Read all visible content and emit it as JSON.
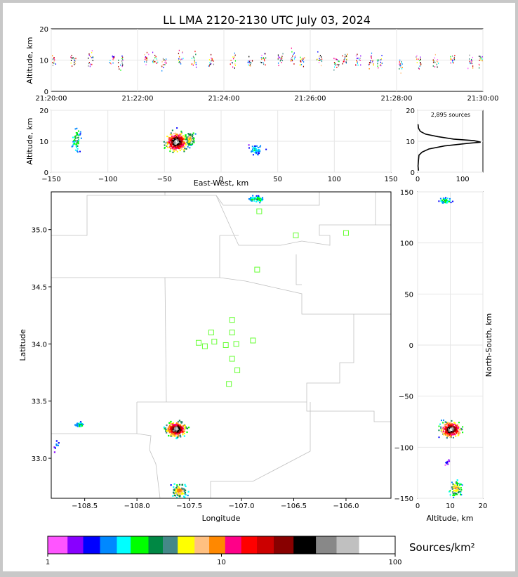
{
  "title": "LL LMA 2120-2130 UTC July 03, 2024",
  "colors": {
    "frame": "#c8c8c8",
    "station": "#66ff33",
    "grid": "#e6e6e6",
    "border": "#c0c0c0"
  },
  "chart_data": [
    {
      "panel": "time-altitude",
      "type": "scatter",
      "ylabel": "Altitude, km",
      "ylim": [
        0,
        20
      ],
      "yticks": [
        "0",
        "10",
        "20"
      ],
      "xticks": [
        "21:20:00",
        "21:22:00",
        "21:24:00",
        "21:26:00",
        "21:28:00",
        "21:30:00"
      ],
      "xlim_minutes": [
        0,
        10
      ],
      "clusters_time": [
        {
          "t": 0.05,
          "alt": 10
        },
        {
          "t": 0.5,
          "alt": 10
        },
        {
          "t": 0.9,
          "alt": 10.5
        },
        {
          "t": 1.4,
          "alt": 10
        },
        {
          "t": 1.6,
          "alt": 9.5
        },
        {
          "t": 2.2,
          "alt": 10.5
        },
        {
          "t": 2.4,
          "alt": 10
        },
        {
          "t": 2.6,
          "alt": 9
        },
        {
          "t": 3.0,
          "alt": 11
        },
        {
          "t": 3.3,
          "alt": 10
        },
        {
          "t": 3.7,
          "alt": 9.5
        },
        {
          "t": 4.2,
          "alt": 10
        },
        {
          "t": 4.6,
          "alt": 9
        },
        {
          "t": 4.9,
          "alt": 10.5
        },
        {
          "t": 5.3,
          "alt": 10.5
        },
        {
          "t": 5.6,
          "alt": 11
        },
        {
          "t": 5.8,
          "alt": 9.5
        },
        {
          "t": 6.2,
          "alt": 10
        },
        {
          "t": 6.6,
          "alt": 9
        },
        {
          "t": 6.8,
          "alt": 10.5
        },
        {
          "t": 7.1,
          "alt": 10
        },
        {
          "t": 7.4,
          "alt": 10
        },
        {
          "t": 7.6,
          "alt": 9.5
        },
        {
          "t": 8.1,
          "alt": 8.5
        },
        {
          "t": 8.5,
          "alt": 9
        },
        {
          "t": 8.9,
          "alt": 9.5
        },
        {
          "t": 9.3,
          "alt": 10.5
        },
        {
          "t": 9.7,
          "alt": 9.5
        },
        {
          "t": 9.95,
          "alt": 10
        }
      ]
    },
    {
      "panel": "ew-altitude",
      "type": "heatmap",
      "xlabel": "East-West, km",
      "ylabel": "Altitude, km",
      "xlim": [
        -150,
        150
      ],
      "ylim": [
        0,
        20
      ],
      "xticks": [
        "−150",
        "−100",
        "−50",
        "0",
        "50",
        "100",
        "150"
      ],
      "yticks": [
        "0",
        "10",
        "20"
      ],
      "clusters": [
        {
          "x": -128,
          "alt": 10.5,
          "sx": 2.5,
          "sy": 2.5,
          "n": 60,
          "peak": 0.35
        },
        {
          "x": -40,
          "alt": 10,
          "sx": 6,
          "sy": 2,
          "n": 320,
          "peak": 0.95
        },
        {
          "x": -28,
          "alt": 11,
          "sx": 3,
          "sy": 1.5,
          "n": 80,
          "peak": 0.5
        },
        {
          "x": 30,
          "alt": 7.5,
          "sx": 5,
          "sy": 1.2,
          "n": 50,
          "peak": 0.2
        }
      ]
    },
    {
      "panel": "altitude-histogram",
      "type": "line",
      "annotation": "2,895 sources",
      "ylim": [
        0,
        20
      ],
      "xlim": [
        0,
        145
      ],
      "yticks": [
        "0",
        "10",
        "20"
      ],
      "xticks": [
        "0",
        "100"
      ],
      "profile": [
        {
          "alt": 0.5,
          "count": 2
        },
        {
          "alt": 2,
          "count": 1
        },
        {
          "alt": 4,
          "count": 2
        },
        {
          "alt": 5.5,
          "count": 3
        },
        {
          "alt": 6.5,
          "count": 10
        },
        {
          "alt": 7.5,
          "count": 25
        },
        {
          "alt": 8.5,
          "count": 60
        },
        {
          "alt": 9.3,
          "count": 110
        },
        {
          "alt": 9.7,
          "count": 140
        },
        {
          "alt": 10.2,
          "count": 125
        },
        {
          "alt": 10.7,
          "count": 80
        },
        {
          "alt": 11.5,
          "count": 45
        },
        {
          "alt": 12.3,
          "count": 18
        },
        {
          "alt": 13.2,
          "count": 6
        },
        {
          "alt": 14.2,
          "count": 2
        },
        {
          "alt": 15.5,
          "count": 1
        }
      ]
    },
    {
      "panel": "plan-view",
      "type": "heatmap",
      "xlabel": "Longitude",
      "ylabel": "Latitude",
      "xlim": [
        -108.82,
        -105.57
      ],
      "ylim": [
        32.65,
        35.33
      ],
      "xticks": [
        "−108.5",
        "−108.0",
        "−107.5",
        "−107.0",
        "−106.5",
        "−106.0"
      ],
      "yticks": [
        "33.0",
        "33.5",
        "34.0",
        "34.5",
        "35.0"
      ],
      "stations": [
        {
          "lon": -106.83,
          "lat": 35.16
        },
        {
          "lon": -106.48,
          "lat": 34.95
        },
        {
          "lon": -106.0,
          "lat": 34.97
        },
        {
          "lon": -106.85,
          "lat": 34.65
        },
        {
          "lon": -107.09,
          "lat": 34.21
        },
        {
          "lon": -107.29,
          "lat": 34.1
        },
        {
          "lon": -107.09,
          "lat": 34.1
        },
        {
          "lon": -107.41,
          "lat": 34.01
        },
        {
          "lon": -107.26,
          "lat": 34.02
        },
        {
          "lon": -107.35,
          "lat": 33.98
        },
        {
          "lon": -107.15,
          "lat": 33.99
        },
        {
          "lon": -107.05,
          "lat": 34.0
        },
        {
          "lon": -106.89,
          "lat": 34.03
        },
        {
          "lon": -107.09,
          "lat": 33.87
        },
        {
          "lon": -107.04,
          "lat": 33.77
        },
        {
          "lon": -107.12,
          "lat": 33.65
        }
      ],
      "clusters": [
        {
          "lon": -106.86,
          "lat": 35.27,
          "sx": 0.05,
          "sy": 0.02,
          "n": 50,
          "peak": 0.3
        },
        {
          "lon": -108.55,
          "lat": 33.3,
          "sx": 0.03,
          "sy": 0.015,
          "n": 30,
          "peak": 0.3
        },
        {
          "lon": -107.63,
          "lat": 33.26,
          "sx": 0.06,
          "sy": 0.04,
          "n": 320,
          "peak": 0.95
        },
        {
          "lon": -107.6,
          "lat": 32.72,
          "sx": 0.05,
          "sy": 0.04,
          "n": 100,
          "peak": 0.55
        },
        {
          "lon": -108.78,
          "lat": 33.12,
          "sx": 0.02,
          "sy": 0.04,
          "n": 8,
          "peak": 0.1
        }
      ]
    },
    {
      "panel": "altitude-ns",
      "type": "heatmap",
      "xlabel": "Altitude, km",
      "ylabel": "North-South, km",
      "xlim": [
        0,
        20
      ],
      "ylim": [
        -150,
        150
      ],
      "xticks": [
        "0",
        "10",
        "20"
      ],
      "yticks": [
        "−150",
        "−100",
        "−50",
        "0",
        "50",
        "100",
        "150"
      ],
      "clusters": [
        {
          "alt": 8.5,
          "ns": 142,
          "sx": 1.2,
          "sy": 2,
          "n": 40,
          "peak": 0.3
        },
        {
          "alt": 10,
          "ns": -82,
          "sx": 2,
          "sy": 5,
          "n": 280,
          "peak": 0.95
        },
        {
          "alt": 11.5,
          "ns": -140,
          "sx": 1.2,
          "sy": 5,
          "n": 90,
          "peak": 0.5
        },
        {
          "alt": 9,
          "ns": -115,
          "sx": 0.5,
          "sy": 2,
          "n": 10,
          "peak": 0.1
        }
      ]
    },
    {
      "panel": "colorbar",
      "type": "heatmap",
      "label": "Sources/km²",
      "ticks": [
        "1",
        "10",
        "100"
      ],
      "colors": [
        "#ff55ff",
        "#8800ff",
        "#0000ff",
        "#0088ff",
        "#00ffff",
        "#00ff00",
        "#008844",
        "#448888",
        "#ffff00",
        "#ffc080",
        "#ff8800",
        "#ff0088",
        "#ff0000",
        "#cc0000",
        "#880000",
        "#000000",
        "#888888",
        "#c0c0c0",
        "#ffffff"
      ],
      "boundaries": [
        1,
        1.3,
        1.6,
        2,
        2.5,
        3,
        3.8,
        4.6,
        5.6,
        7,
        8.5,
        10.5,
        13,
        16,
        20,
        26,
        35,
        46,
        62,
        100
      ]
    }
  ]
}
